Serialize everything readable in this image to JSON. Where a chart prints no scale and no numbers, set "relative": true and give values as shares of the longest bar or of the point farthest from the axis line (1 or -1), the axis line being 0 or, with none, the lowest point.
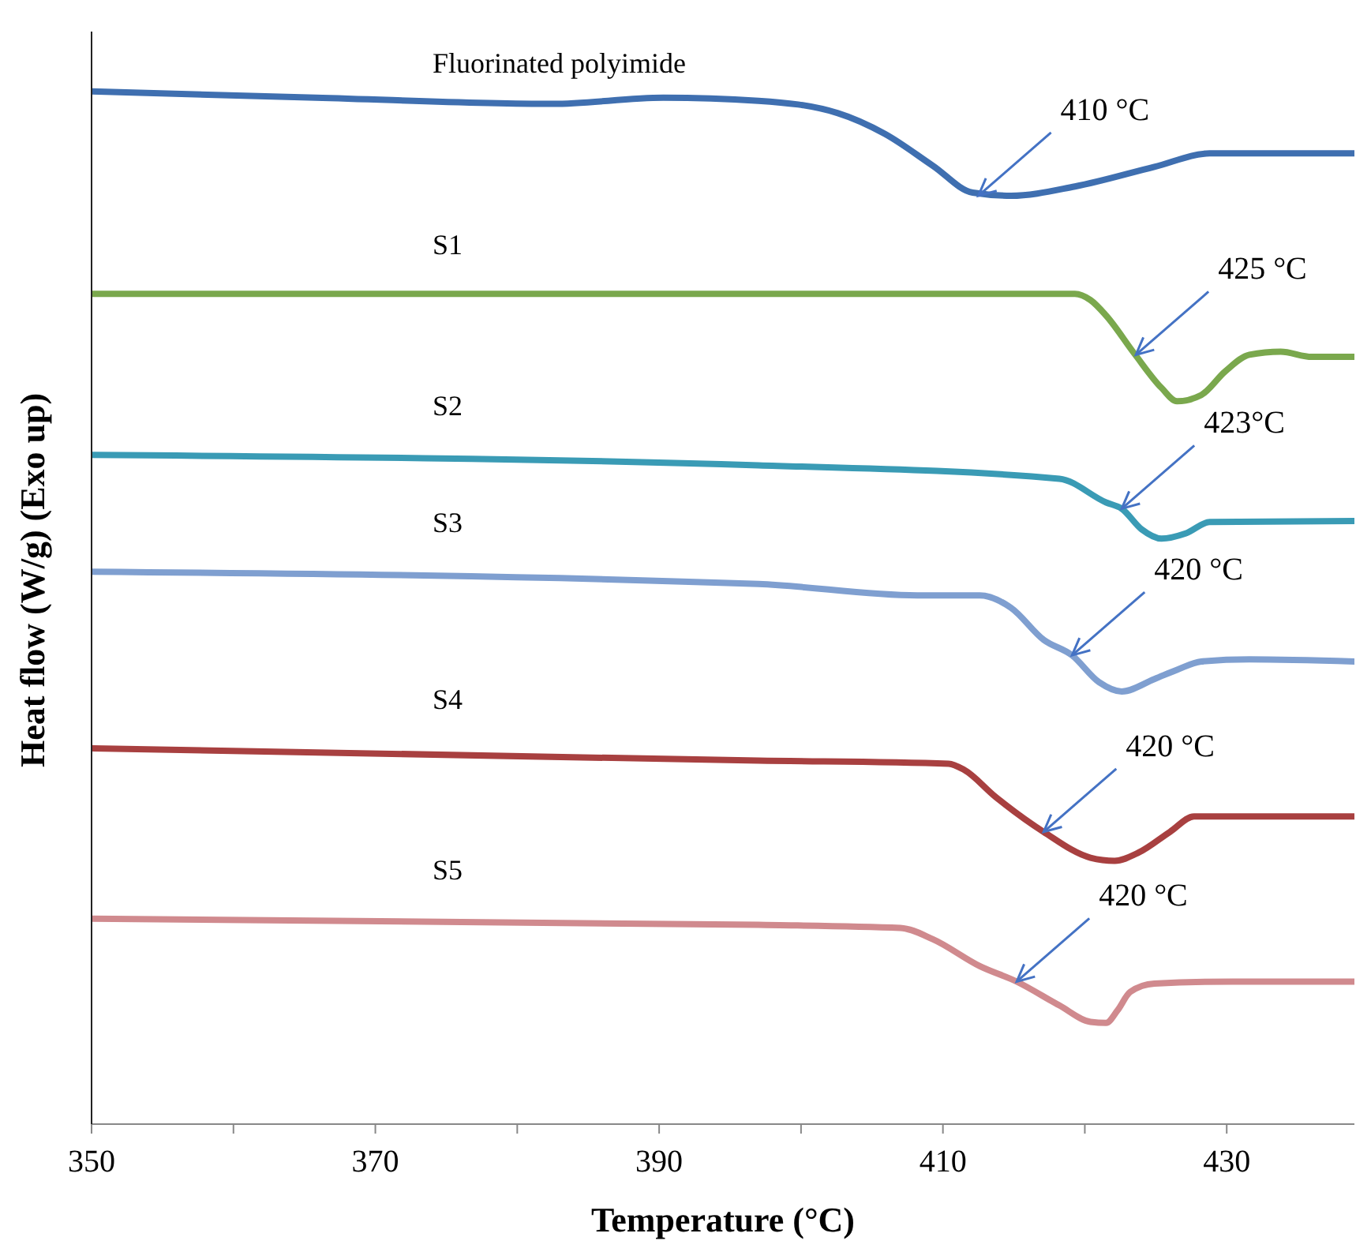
{
  "chart_data": {
    "type": "line",
    "relative": true,
    "xlabel": "Temperature (°C)",
    "ylabel": "Heat flow (W/g) (Exo up)",
    "xlim": [
      350,
      439
    ],
    "xticks": [
      350,
      {
        "value": 360,
        "label": null
      },
      370,
      {
        "value": 380,
        "label": null
      },
      390,
      {
        "value": 400,
        "label": null
      },
      410,
      {
        "value": 420,
        "label": null
      },
      430
    ],
    "grid": false,
    "legend": false,
    "marker": "none",
    "line_style": "solid",
    "series": [
      {
        "name": "Fluorinated polyimide",
        "color": "#3f6fb0",
        "x": [
          350,
          365.8,
          382.5,
          390.3,
          397,
          402.6,
          405.9,
          409.3,
          412.1,
          414.8,
          419.3,
          424.9,
          428.8,
          439
        ],
        "values": [
          1,
          0.994,
          0.988,
          0.994,
          0.991,
          0.979,
          0.959,
          0.928,
          0.902,
          0.899,
          0.908,
          0.927,
          0.94,
          0.94
        ]
      },
      {
        "name": "S1",
        "color": "#7aa84d",
        "x": [
          350,
          400,
          419.3,
          420.4,
          421.5,
          423.5,
          425.4,
          426.5,
          428.2,
          429.9,
          431.6,
          433.8,
          436,
          439
        ],
        "values": [
          0.804,
          0.804,
          0.804,
          0.798,
          0.783,
          0.746,
          0.713,
          0.7,
          0.706,
          0.729,
          0.745,
          0.748,
          0.743,
          0.743
        ]
      },
      {
        "name": "S2",
        "color": "#3a9bb5",
        "x": [
          350,
          397,
          418.2,
          421.5,
          422.6,
          424,
          425.4,
          427.1,
          428.8,
          439
        ],
        "values": [
          0.648,
          0.638,
          0.625,
          0.602,
          0.596,
          0.576,
          0.567,
          0.572,
          0.583,
          0.584
        ]
      },
      {
        "name": "S3",
        "color": "#7f9fd0",
        "x": [
          350,
          397,
          408.2,
          412.6,
          414.8,
          417.1,
          419.1,
          421,
          422.6,
          424.9,
          426.5,
          428.2,
          431.6,
          439
        ],
        "values": [
          0.535,
          0.523,
          0.512,
          0.512,
          0.5,
          0.469,
          0.454,
          0.428,
          0.419,
          0.431,
          0.44,
          0.448,
          0.45,
          0.448
        ]
      },
      {
        "name": "S4",
        "color": "#a84040",
        "x": [
          350,
          397,
          410.4,
          411.5,
          413.7,
          417.1,
          420.4,
          422.1,
          423.8,
          426,
          427.7,
          429.9,
          439
        ],
        "values": [
          0.364,
          0.352,
          0.349,
          0.343,
          0.317,
          0.283,
          0.258,
          0.255,
          0.263,
          0.283,
          0.298,
          0.298,
          0.298
        ]
      },
      {
        "name": "S5",
        "color": "#d08a8e",
        "x": [
          350,
          397,
          407,
          409.3,
          412.6,
          415.2,
          418.2,
          420.4,
          421.5,
          422.3,
          423.2,
          424.9,
          430.4,
          439
        ],
        "values": [
          0.199,
          0.193,
          0.19,
          0.179,
          0.153,
          0.138,
          0.115,
          0.099,
          0.098,
          0.11,
          0.128,
          0.136,
          0.138,
          0.138
        ]
      }
    ],
    "annotations": [
      {
        "text": "410 °C",
        "x": 412.5,
        "y": 0.899
      },
      {
        "text": "425 °C",
        "x": 423.6,
        "y": 0.745
      },
      {
        "text": "423°C",
        "x": 422.6,
        "y": 0.596
      },
      {
        "text": "420 °C",
        "x": 419.1,
        "y": 0.454
      },
      {
        "text": "420 °C",
        "x": 417.1,
        "y": 0.283
      },
      {
        "text": "420 °C",
        "x": 415.2,
        "y": 0.138
      }
    ]
  }
}
